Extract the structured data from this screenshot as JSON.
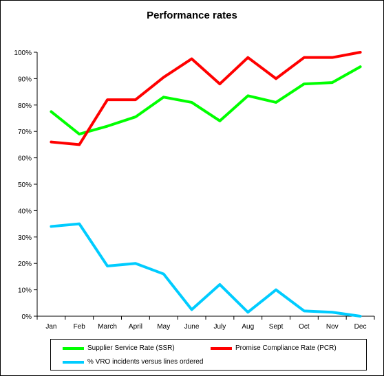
{
  "chart_data": {
    "type": "line",
    "title": "Performance rates",
    "categories": [
      "Jan",
      "Feb",
      "March",
      "April",
      "May",
      "June",
      "July",
      "Aug",
      "Sept",
      "Oct",
      "Nov",
      "Dec"
    ],
    "y_ticks": [
      "0%",
      "10%",
      "20%",
      "30%",
      "40%",
      "50%",
      "60%",
      "70%",
      "80%",
      "90%",
      "100%"
    ],
    "ylim": [
      0,
      100
    ],
    "grid": false,
    "legend_position": "bottom",
    "series": [
      {
        "name": "Supplier Service Rate (SSR)",
        "color": "#00ff00",
        "values": [
          77.5,
          69,
          72,
          75.5,
          83,
          81,
          74,
          83.5,
          81,
          88,
          88.5,
          94.5
        ]
      },
      {
        "name": "Promise Compliance Rate (PCR)",
        "color": "#ff0000",
        "values": [
          66,
          65,
          82,
          82,
          90.5,
          97.5,
          88,
          98,
          90,
          98,
          98,
          100
        ]
      },
      {
        "name": "% VRO incidents versus lines ordered",
        "color": "#00ccff",
        "values": [
          34,
          35,
          19,
          20,
          16,
          2.5,
          12,
          1.5,
          10,
          2,
          1.5,
          0
        ]
      }
    ]
  }
}
